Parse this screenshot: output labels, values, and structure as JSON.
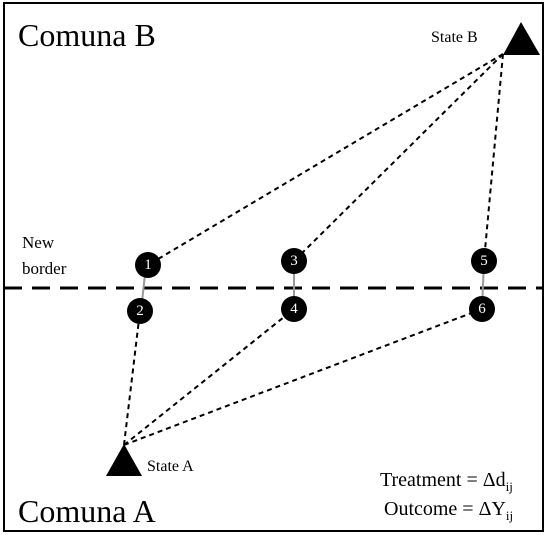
{
  "regions": {
    "top": "Comuna B",
    "bottom": "Comuna A"
  },
  "states": {
    "b": "State B",
    "a": "State A"
  },
  "border": {
    "line1": "New",
    "line2": "border"
  },
  "nodes": [
    {
      "label": "1"
    },
    {
      "label": "2"
    },
    {
      "label": "3"
    },
    {
      "label": "4"
    },
    {
      "label": "5"
    },
    {
      "label": "6"
    }
  ],
  "legend": {
    "treatment": "Treatment = Δd",
    "treatment_sub": "ij",
    "outcome": "Outcome = ΔY",
    "outcome_sub": "ij"
  }
}
